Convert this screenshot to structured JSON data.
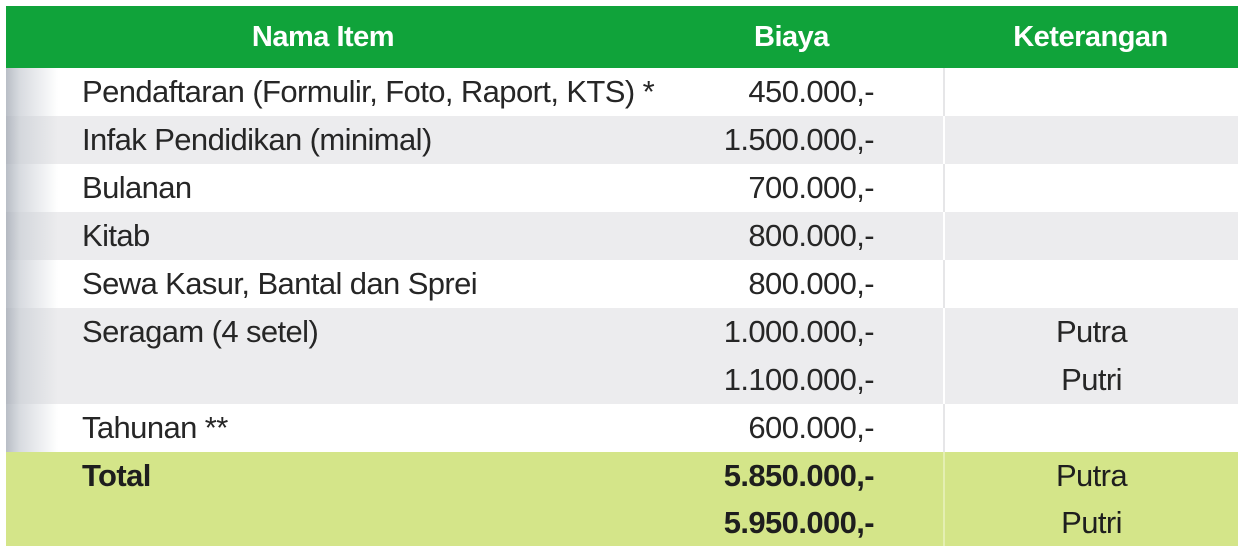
{
  "table": {
    "headers": {
      "item": "Nama Item",
      "cost": "Biaya",
      "note": "Keterangan"
    },
    "rows": [
      {
        "item": "Pendaftaran (Formulir, Foto, Raport, KTS) *",
        "cost": "450.000,-",
        "note": ""
      },
      {
        "item": "Infak Pendidikan (minimal)",
        "cost": "1.500.000,-",
        "note": ""
      },
      {
        "item": "Bulanan",
        "cost": "700.000,-",
        "note": ""
      },
      {
        "item": "Kitab",
        "cost": "800.000,-",
        "note": ""
      },
      {
        "item": "Sewa Kasur, Bantal dan Sprei",
        "cost": "800.000,-",
        "note": ""
      },
      {
        "item": "Seragam (4 setel)",
        "cost": "1.000.000,-",
        "note": "Putra"
      },
      {
        "item": "",
        "cost": "1.100.000,-",
        "note": "Putri"
      },
      {
        "item": "Tahunan **",
        "cost": "600.000,-",
        "note": ""
      }
    ],
    "total": {
      "label": "Total",
      "rows": [
        {
          "cost": "5.850.000,-",
          "note": "Putra"
        },
        {
          "cost": "5.950.000,-",
          "note": "Putri"
        }
      ]
    }
  },
  "colors": {
    "header_green": "#10a33a",
    "total_lime": "#d4e589",
    "stripe_gray": "#ececee"
  }
}
